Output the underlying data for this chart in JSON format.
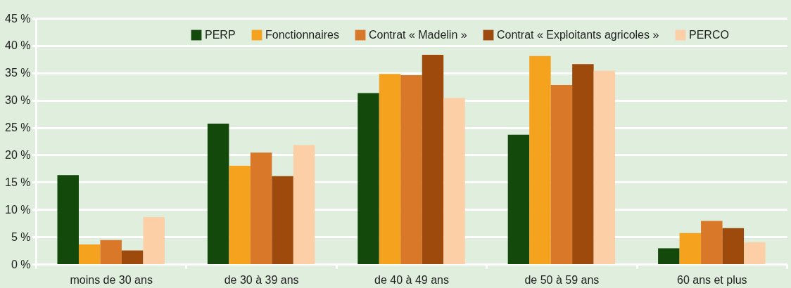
{
  "chart_data": {
    "type": "bar",
    "categories": [
      "moins de 30 ans",
      "de 30 à 39 ans",
      "de 40 à 49 ans",
      "de 50 à 59 ans",
      "60 ans et plus"
    ],
    "series": [
      {
        "name": "PERP",
        "color": "#134a0c",
        "values": [
          16.3,
          25.7,
          31.3,
          23.7,
          2.9
        ]
      },
      {
        "name": "Fonctionnaires",
        "color": "#f5a31f",
        "values": [
          3.6,
          18.0,
          34.8,
          38.1,
          5.7
        ]
      },
      {
        "name": "Contrat « Madelin »",
        "color": "#d97828",
        "values": [
          4.4,
          20.4,
          34.6,
          32.8,
          7.9
        ]
      },
      {
        "name": "Contrat « Exploitants agricoles »",
        "color": "#9e4a0c",
        "values": [
          2.5,
          16.1,
          38.3,
          36.6,
          6.6
        ]
      },
      {
        "name": "PERCO",
        "color": "#fdcfa6",
        "values": [
          8.6,
          21.8,
          30.4,
          35.4,
          4.0
        ]
      }
    ],
    "ylim": [
      0,
      45
    ],
    "yticks": [
      {
        "value": 0,
        "label": "0 %"
      },
      {
        "value": 5,
        "label": "5 %"
      },
      {
        "value": 10,
        "label": "10 %"
      },
      {
        "value": 15,
        "label": "15 %"
      },
      {
        "value": 20,
        "label": "20 %"
      },
      {
        "value": 25,
        "label": "25 %"
      },
      {
        "value": 30,
        "label": "30 %"
      },
      {
        "value": 35,
        "label": "35 %"
      },
      {
        "value": 40,
        "label": "40 %"
      },
      {
        "value": 45,
        "label": "45 %"
      }
    ],
    "grid": "y",
    "legend": "top"
  }
}
